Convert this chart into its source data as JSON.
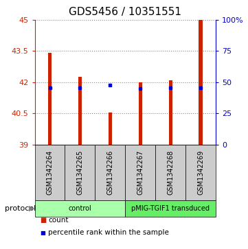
{
  "title": "GDS5456 / 10351551",
  "samples": [
    "GSM1342264",
    "GSM1342265",
    "GSM1342266",
    "GSM1342267",
    "GSM1342268",
    "GSM1342269"
  ],
  "bar_tops": [
    43.4,
    42.25,
    40.55,
    42.0,
    42.1,
    45.0
  ],
  "blue_markers": [
    41.72,
    41.72,
    41.85,
    41.68,
    41.72,
    41.72
  ],
  "bar_base": 39.0,
  "ylim_left": [
    39,
    45
  ],
  "ylim_right": [
    0,
    100
  ],
  "yticks_left": [
    39,
    40.5,
    42,
    43.5,
    45
  ],
  "ytick_labels_left": [
    "39",
    "40.5",
    "42",
    "43.5",
    "45"
  ],
  "yticks_right": [
    0,
    25,
    50,
    75,
    100
  ],
  "ytick_labels_right": [
    "0",
    "25",
    "50",
    "75",
    "100%"
  ],
  "bar_color": "#cc2200",
  "blue_color": "#0000cc",
  "bar_width": 0.12,
  "protocol_groups": [
    {
      "label": "control",
      "samples": [
        0,
        1,
        2
      ],
      "color": "#aaffaa"
    },
    {
      "label": "pMIG-TGIF1 transduced",
      "samples": [
        3,
        4,
        5
      ],
      "color": "#66ee66"
    }
  ],
  "grid_color": "#888888",
  "left_yaxis_color": "#cc2200",
  "right_yaxis_color": "#0000cc",
  "background_color": "#ffffff",
  "label_area_color": "#cccccc",
  "title_fontsize": 11,
  "tick_fontsize": 8,
  "sample_fontsize": 7
}
